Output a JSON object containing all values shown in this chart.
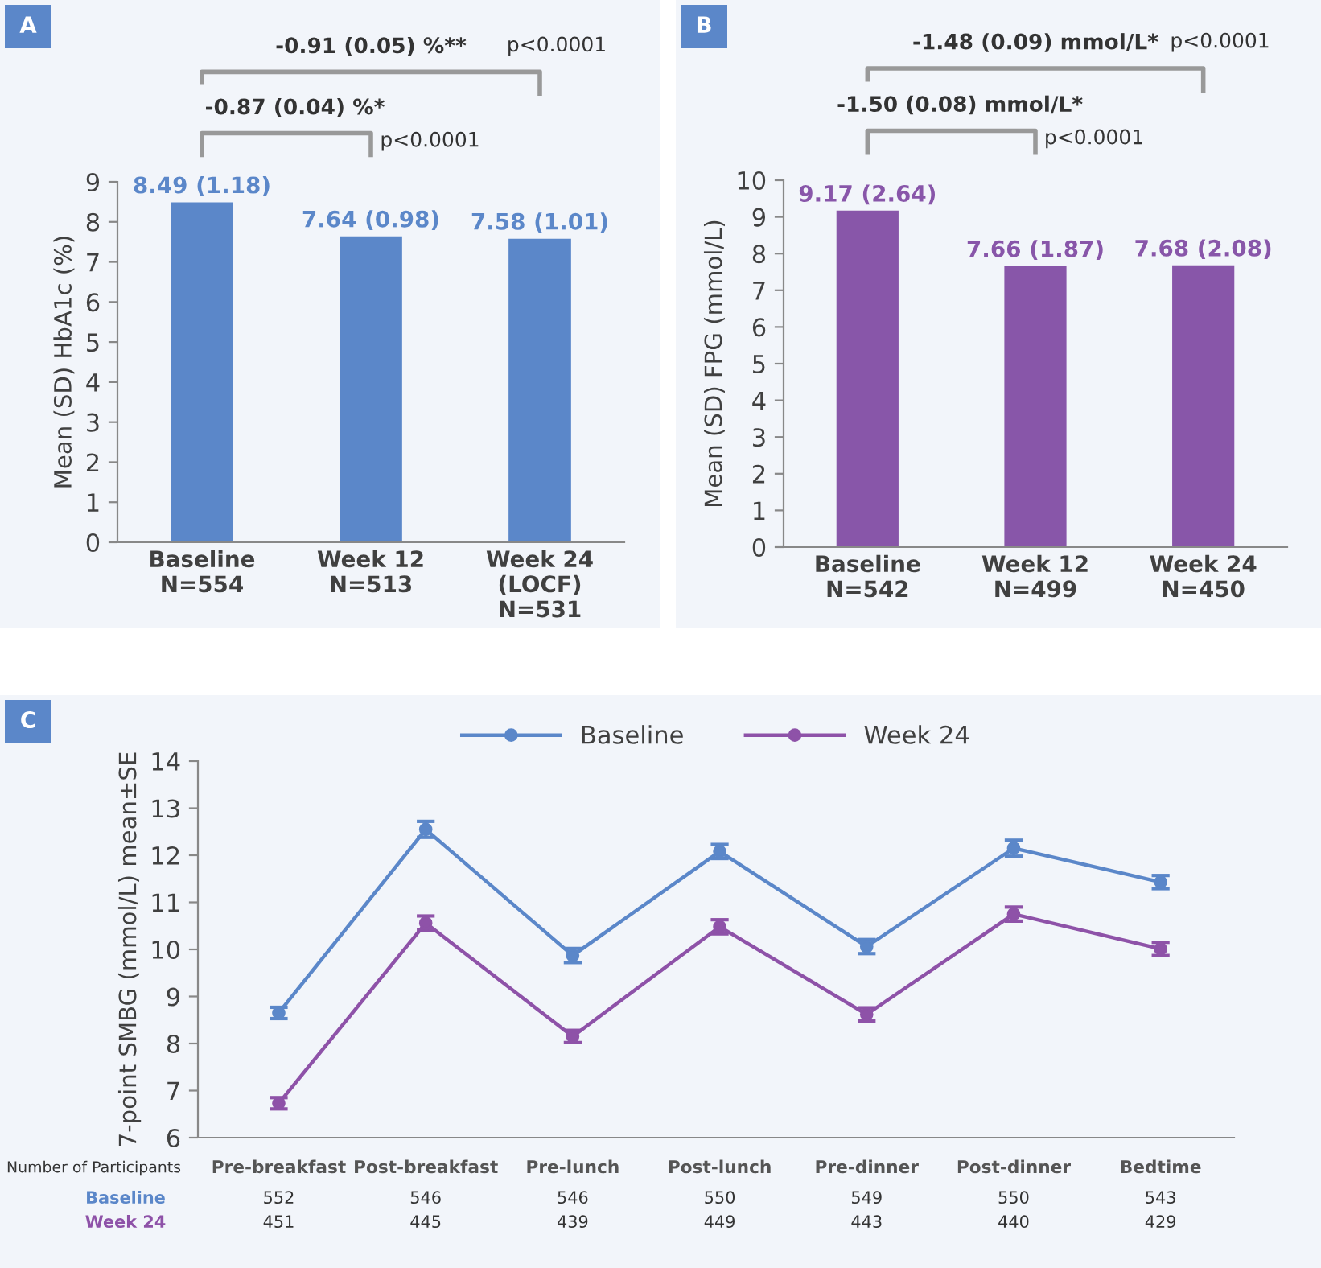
{
  "chart_data": [
    {
      "type": "bar",
      "title": "A",
      "ylabel": "Mean (SD) HbA1c (%)",
      "categories": [
        "Baseline\nN=554",
        "Week 12\nN=513",
        "Week 24\n(LOCF)\nN=531"
      ],
      "values": [
        8.49,
        7.64,
        7.58
      ],
      "color": "#5b87c9",
      "value_labels": [
        "8.49 (1.18)",
        "7.64 (0.98)",
        "7.58 (1.01)"
      ],
      "ylim": [
        0,
        9
      ],
      "yticks": [
        0,
        1,
        2,
        3,
        4,
        5,
        6,
        7,
        8,
        9
      ],
      "grid": false,
      "annotations": [
        "-0.91 (0.05) %**",
        "p<0.0001",
        "-0.87 (0.04) %*",
        "p<0.0001"
      ]
    },
    {
      "type": "bar",
      "title": "B",
      "ylabel": "Mean (SD) FPG (mmol/L)",
      "categories": [
        "Baseline\nN=542",
        "Week 12\nN=499",
        "Week 24\nN=450"
      ],
      "values": [
        9.17,
        7.66,
        7.68
      ],
      "color": "#8856a9",
      "value_labels": [
        "9.17 (2.64)",
        "7.66 (1.87)",
        "7.68 (2.08)"
      ],
      "ylim": [
        0,
        10
      ],
      "yticks": [
        0,
        1,
        2,
        3,
        4,
        5,
        6,
        7,
        8,
        9,
        10
      ],
      "grid": false,
      "annotations": [
        "-1.48 (0.09) mmol/L*",
        "p<0.0001",
        "-1.50 (0.08) mmol/L*",
        "p<0.0001"
      ]
    },
    {
      "type": "line",
      "title": "C",
      "ylabel": "7-point SMBG (mmol/L) mean±SE",
      "categories": [
        "Pre-breakfast",
        "Post-breakfast",
        "Pre-lunch",
        "Post-lunch",
        "Pre-dinner",
        "Post-dinner",
        "Bedtime"
      ],
      "ylim": [
        6,
        14
      ],
      "yticks": [
        6,
        7,
        8,
        9,
        10,
        11,
        12,
        13,
        14
      ],
      "grid": false,
      "legend": "top",
      "marker": "circle",
      "line_style": "solid",
      "series": [
        {
          "name": "Baseline",
          "color": "#5b87c9",
          "values": [
            8.65,
            12.55,
            9.87,
            12.08,
            10.06,
            12.15,
            11.43
          ],
          "errors": [
            0.12,
            0.17,
            0.15,
            0.15,
            0.15,
            0.17,
            0.14
          ]
        },
        {
          "name": "Week 24",
          "color": "#8e52a8",
          "values": [
            6.73,
            10.56,
            8.15,
            10.48,
            8.62,
            10.75,
            10.01
          ],
          "errors": [
            0.12,
            0.15,
            0.13,
            0.15,
            0.14,
            0.15,
            0.14
          ]
        }
      ],
      "annotations": [
        "Number of Participants",
        "Baseline",
        "Week 24",
        "552",
        "546",
        "546",
        "550",
        "549",
        "550",
        "543",
        "451",
        "445",
        "439",
        "449",
        "443",
        "440",
        "429"
      ]
    }
  ]
}
